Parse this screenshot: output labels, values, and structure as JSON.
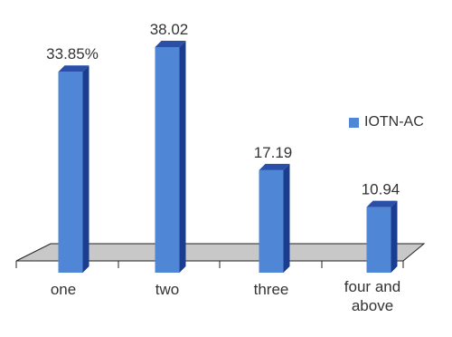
{
  "chart_data": {
    "type": "bar",
    "style": "3d",
    "categories": [
      "one",
      "two",
      "three",
      "four and above"
    ],
    "series": [
      {
        "name": "IOTN-AC",
        "values": [
          33.85,
          38.02,
          17.19,
          10.94
        ],
        "labels": [
          "33.85%",
          "38.02",
          "17.19",
          "10.94"
        ]
      }
    ],
    "ylim": [
      0,
      40
    ],
    "grid": false,
    "legend_position": "right",
    "colors": {
      "bar_front": "#4f86d6",
      "bar_side": "#1b3d8f",
      "bar_top": "#2b4fa8",
      "floor": "#c8c8c8",
      "floor_edge": "#222222"
    }
  }
}
